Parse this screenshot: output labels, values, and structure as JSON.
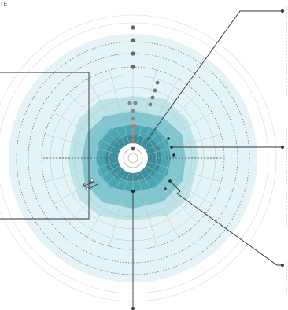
{
  "corner_label": "TE",
  "colors": {
    "outer_zone": "#e4f3f5",
    "mid_zone": "#bfe4e8",
    "inner_zone": "#7fc6cf",
    "core_zone": "#4aa6b2",
    "deep_zone": "#3a8f9b",
    "center": "#ffffff",
    "dot": "#555555",
    "dot_accent": "#d0756a",
    "line": "#333333",
    "grid": "#b0c6c9"
  }
}
